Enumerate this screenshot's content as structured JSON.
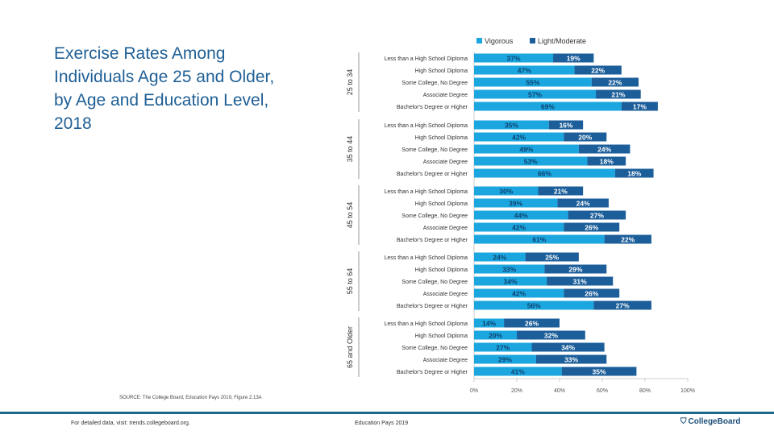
{
  "title": "Exercise Rates Among Individuals Age 25 and Older, by Age and Education Level, 2018",
  "source": "SOURCE: The College Board, Education Pays 2019, Figure 2.13A",
  "footer": {
    "left": "For detailed data, visit: trends.collegeboard.org.",
    "center": "Education Pays 2019",
    "logo": "CollegeBoard"
  },
  "chart_data": {
    "type": "bar",
    "stacked": true,
    "orientation": "horizontal",
    "legend_position": "top",
    "colors": {
      "Vigorous": "#1ba6df",
      "Light/Moderate": "#1b5e9a"
    },
    "xlim": [
      0,
      100
    ],
    "xticks": [
      "0%",
      "20%",
      "40%",
      "60%",
      "80%",
      "100%"
    ],
    "categories": [
      "Less than a High School Diploma",
      "High School Diploma",
      "Some College, No Degree",
      "Associate Degree",
      "Bachelor's Degree or Higher"
    ],
    "groups": [
      {
        "name": "25 to 34",
        "Vigorous": [
          37,
          47,
          55,
          57,
          69
        ],
        "Light/Moderate": [
          19,
          22,
          22,
          21,
          17
        ]
      },
      {
        "name": "35 to 44",
        "Vigorous": [
          35,
          42,
          49,
          53,
          66
        ],
        "Light/Moderate": [
          16,
          20,
          24,
          18,
          18
        ]
      },
      {
        "name": "45 to 54",
        "Vigorous": [
          30,
          39,
          44,
          42,
          61
        ],
        "Light/Moderate": [
          21,
          24,
          27,
          26,
          22
        ]
      },
      {
        "name": "55 to 64",
        "Vigorous": [
          24,
          33,
          34,
          42,
          56
        ],
        "Light/Moderate": [
          25,
          29,
          31,
          26,
          27
        ]
      },
      {
        "name": "65 and Older",
        "Vigorous": [
          14,
          20,
          27,
          29,
          41
        ],
        "Light/Moderate": [
          26,
          32,
          34,
          33,
          35
        ]
      }
    ],
    "series": [
      {
        "name": "Vigorous"
      },
      {
        "name": "Light/Moderate"
      }
    ]
  }
}
